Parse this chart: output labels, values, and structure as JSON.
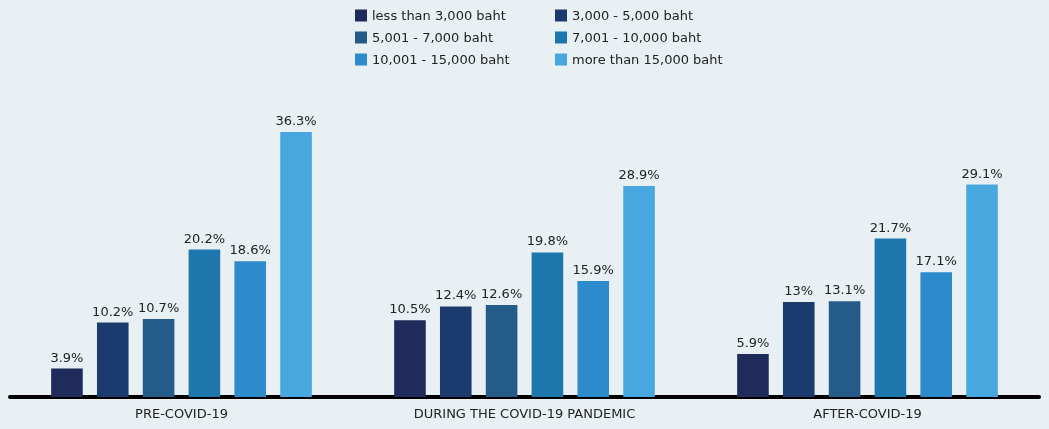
{
  "chart_data": {
    "type": "bar",
    "categories": [
      "PRE-COVID-19",
      "DURING THE COVID-19 PANDEMIC",
      "AFTER-COVID-19"
    ],
    "series": [
      {
        "name": "less than 3,000 baht",
        "color": "#1f2b5a",
        "values": [
          3.9,
          10.5,
          5.9
        ],
        "value_labels": [
          "3.9%",
          "10.5%",
          "5.9%"
        ]
      },
      {
        "name": "3,000 - 5,000 baht",
        "color": "#1b3a6d",
        "values": [
          10.2,
          12.4,
          13
        ],
        "value_labels": [
          "10.2%",
          "12.4%",
          "13%"
        ]
      },
      {
        "name": "5,001 - 7,000 baht",
        "color": "#245b89",
        "values": [
          10.7,
          12.6,
          13.1
        ],
        "value_labels": [
          "10.7%",
          "12.6%",
          "13.1%"
        ]
      },
      {
        "name": "7,001 - 10,000 baht",
        "color": "#1d76ac",
        "values": [
          20.2,
          19.8,
          21.7
        ],
        "value_labels": [
          "20.2%",
          "19.8%",
          "21.7%"
        ]
      },
      {
        "name": "10,001 - 15,000 baht",
        "color": "#2e8bcb",
        "values": [
          18.6,
          15.9,
          17.1
        ],
        "value_labels": [
          "18.6%",
          "15.9%",
          "17.1%"
        ]
      },
      {
        "name": "more than 15,000 baht",
        "color": "#49a7df",
        "values": [
          36.3,
          28.9,
          29.1
        ],
        "value_labels": [
          "36.3%",
          "28.9%",
          "29.1%"
        ]
      }
    ],
    "legend": "top",
    "grid": false
  }
}
